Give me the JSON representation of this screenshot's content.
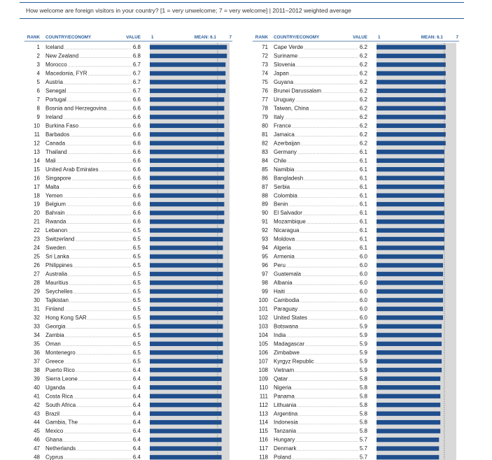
{
  "title": "How welcome are foreign visitors in your country? [1 = very unwelcome; 7 = very welcome] | 2011–2012 weighted average",
  "colors": {
    "bar": "#1f4e8c",
    "track": "#d9d9d9",
    "header": "#2a5d9a",
    "mean_line": "#555555"
  },
  "chart_data": {
    "type": "bar",
    "orientation": "horizontal",
    "title": "How welcome are foreign visitors in your country? [1 = very unwelcome; 7 = very welcome] | 2011–2012 weighted average",
    "xlim": [
      1,
      7
    ],
    "mean": 6.1,
    "columns": {
      "rank": "RANK",
      "country": "COUNTRY/ECONOMY",
      "value": "VALUE",
      "scale_min": "1",
      "mean_label": "MEAN: 6.1",
      "scale_max": "7"
    },
    "left_panel": [
      {
        "rank": "1",
        "country": "Iceland",
        "value": "6.8"
      },
      {
        "rank": "2",
        "country": "New Zealand",
        "value": "6.8"
      },
      {
        "rank": "3",
        "country": "Morocco",
        "value": "6.7"
      },
      {
        "rank": "4",
        "country": "Macedonia, FYR",
        "value": "6.7"
      },
      {
        "rank": "5",
        "country": "Austria",
        "value": "6.7"
      },
      {
        "rank": "6",
        "country": "Senegal",
        "value": "6.7"
      },
      {
        "rank": "7",
        "country": "Portugal",
        "value": "6.6"
      },
      {
        "rank": "8",
        "country": "Bosnia and Herzegovina",
        "value": "6.6"
      },
      {
        "rank": "9",
        "country": "Ireland",
        "value": "6.6"
      },
      {
        "rank": "10",
        "country": "Burkina Faso",
        "value": "6.6"
      },
      {
        "rank": "11",
        "country": "Barbados",
        "value": "6.6"
      },
      {
        "rank": "12",
        "country": "Canada",
        "value": "6.6"
      },
      {
        "rank": "13",
        "country": "Thailand",
        "value": "6.6"
      },
      {
        "rank": "14",
        "country": "Mali",
        "value": "6.6"
      },
      {
        "rank": "15",
        "country": "United Arab Emirates",
        "value": "6.6"
      },
      {
        "rank": "16",
        "country": "Singapore",
        "value": "6.6"
      },
      {
        "rank": "17",
        "country": "Malta",
        "value": "6.6"
      },
      {
        "rank": "18",
        "country": "Yemen",
        "value": "6.6"
      },
      {
        "rank": "19",
        "country": "Belgium",
        "value": "6.6"
      },
      {
        "rank": "20",
        "country": "Bahrain",
        "value": "6.6"
      },
      {
        "rank": "21",
        "country": "Rwanda",
        "value": "6.6"
      },
      {
        "rank": "22",
        "country": "Lebanon",
        "value": "6.5"
      },
      {
        "rank": "23",
        "country": "Switzerland",
        "value": "6.5"
      },
      {
        "rank": "24",
        "country": "Sweden",
        "value": "6.5"
      },
      {
        "rank": "25",
        "country": "Sri Lanka",
        "value": "6.5"
      },
      {
        "rank": "26",
        "country": "Philippines",
        "value": "6.5"
      },
      {
        "rank": "27",
        "country": "Australia",
        "value": "6.5"
      },
      {
        "rank": "28",
        "country": "Mauritius",
        "value": "6.5"
      },
      {
        "rank": "29",
        "country": "Seychelles",
        "value": "6.5"
      },
      {
        "rank": "30",
        "country": "Tajikistan",
        "value": "6.5"
      },
      {
        "rank": "31",
        "country": "Finland",
        "value": "6.5"
      },
      {
        "rank": "32",
        "country": "Hong Kong SAR",
        "value": "6.5"
      },
      {
        "rank": "33",
        "country": "Georgia",
        "value": "6.5"
      },
      {
        "rank": "34",
        "country": "Zambia",
        "value": "6.5"
      },
      {
        "rank": "35",
        "country": "Oman",
        "value": "6.5"
      },
      {
        "rank": "36",
        "country": "Montenegro",
        "value": "6.5"
      },
      {
        "rank": "37",
        "country": "Greece",
        "value": "6.5"
      },
      {
        "rank": "38",
        "country": "Puerto Rico",
        "value": "6.4"
      },
      {
        "rank": "39",
        "country": "Sierra Leone",
        "value": "6.4"
      },
      {
        "rank": "40",
        "country": "Uganda",
        "value": "6.4"
      },
      {
        "rank": "41",
        "country": "Costa Rica",
        "value": "6.4"
      },
      {
        "rank": "42",
        "country": "South Africa",
        "value": "6.4"
      },
      {
        "rank": "43",
        "country": "Brazil",
        "value": "6.4"
      },
      {
        "rank": "44",
        "country": "Gambia, The",
        "value": "6.4"
      },
      {
        "rank": "45",
        "country": "Mexico",
        "value": "6.4"
      },
      {
        "rank": "46",
        "country": "Ghana",
        "value": "6.4"
      },
      {
        "rank": "47",
        "country": "Netherlands",
        "value": "6.4"
      },
      {
        "rank": "48",
        "country": "Cyprus",
        "value": "6.4"
      }
    ],
    "right_panel": [
      {
        "rank": "71",
        "country": "Cape Verde",
        "value": "6.2"
      },
      {
        "rank": "72",
        "country": "Suriname",
        "value": "6.2"
      },
      {
        "rank": "73",
        "country": "Slovenia",
        "value": "6.2"
      },
      {
        "rank": "74",
        "country": "Japan",
        "value": "6.2"
      },
      {
        "rank": "75",
        "country": "Guyana",
        "value": "6.2"
      },
      {
        "rank": "76",
        "country": "Brunei Darussalam",
        "value": "6.2"
      },
      {
        "rank": "77",
        "country": "Uruguay",
        "value": "6.2"
      },
      {
        "rank": "78",
        "country": "Taiwan, China",
        "value": "6.2"
      },
      {
        "rank": "79",
        "country": "Italy",
        "value": "6.2"
      },
      {
        "rank": "80",
        "country": "France",
        "value": "6.2"
      },
      {
        "rank": "81",
        "country": "Jamaica",
        "value": "6.2"
      },
      {
        "rank": "82",
        "country": "Azerbaijan",
        "value": "6.2"
      },
      {
        "rank": "83",
        "country": "Germany",
        "value": "6.1"
      },
      {
        "rank": "84",
        "country": "Chile",
        "value": "6.1"
      },
      {
        "rank": "85",
        "country": "Namibia",
        "value": "6.1"
      },
      {
        "rank": "86",
        "country": "Bangladesh",
        "value": "6.1"
      },
      {
        "rank": "87",
        "country": "Serbia",
        "value": "6.1"
      },
      {
        "rank": "88",
        "country": "Colombia",
        "value": "6.1"
      },
      {
        "rank": "89",
        "country": "Benin",
        "value": "6.1"
      },
      {
        "rank": "90",
        "country": "El Salvador",
        "value": "6.1"
      },
      {
        "rank": "91",
        "country": "Mozambique",
        "value": "6.1"
      },
      {
        "rank": "92",
        "country": "Nicaragua",
        "value": "6.1"
      },
      {
        "rank": "93",
        "country": "Moldova",
        "value": "6.1"
      },
      {
        "rank": "94",
        "country": "Algeria",
        "value": "6.1"
      },
      {
        "rank": "95",
        "country": "Armenia",
        "value": "6.0"
      },
      {
        "rank": "96",
        "country": "Peru",
        "value": "6.0"
      },
      {
        "rank": "97",
        "country": "Guatemala",
        "value": "6.0"
      },
      {
        "rank": "98",
        "country": "Albania",
        "value": "6.0"
      },
      {
        "rank": "99",
        "country": "Haiti",
        "value": "6.0"
      },
      {
        "rank": "100",
        "country": "Cambodia",
        "value": "6.0"
      },
      {
        "rank": "101",
        "country": "Paraguay",
        "value": "6.0"
      },
      {
        "rank": "102",
        "country": "United States",
        "value": "6.0"
      },
      {
        "rank": "103",
        "country": "Botswana",
        "value": "5.9"
      },
      {
        "rank": "104",
        "country": "India",
        "value": "5.9"
      },
      {
        "rank": "105",
        "country": "Madagascar",
        "value": "5.9"
      },
      {
        "rank": "106",
        "country": "Zimbabwe",
        "value": "5.9"
      },
      {
        "rank": "107",
        "country": "Kyrgyz Republic",
        "value": "5.9"
      },
      {
        "rank": "108",
        "country": "Vietnam",
        "value": "5.9"
      },
      {
        "rank": "109",
        "country": "Qatar",
        "value": "5.8"
      },
      {
        "rank": "110",
        "country": "Nigeria",
        "value": "5.8"
      },
      {
        "rank": "111",
        "country": "Panama",
        "value": "5.8"
      },
      {
        "rank": "112",
        "country": "Lithuania",
        "value": "5.8"
      },
      {
        "rank": "113",
        "country": "Argentina",
        "value": "5.8"
      },
      {
        "rank": "114",
        "country": "Indonesia",
        "value": "5.8"
      },
      {
        "rank": "115",
        "country": "Tanzania",
        "value": "5.8"
      },
      {
        "rank": "116",
        "country": "Hungary",
        "value": "5.7"
      },
      {
        "rank": "117",
        "country": "Denmark",
        "value": "5.7"
      },
      {
        "rank": "118",
        "country": "Poland",
        "value": "5.7"
      }
    ]
  }
}
